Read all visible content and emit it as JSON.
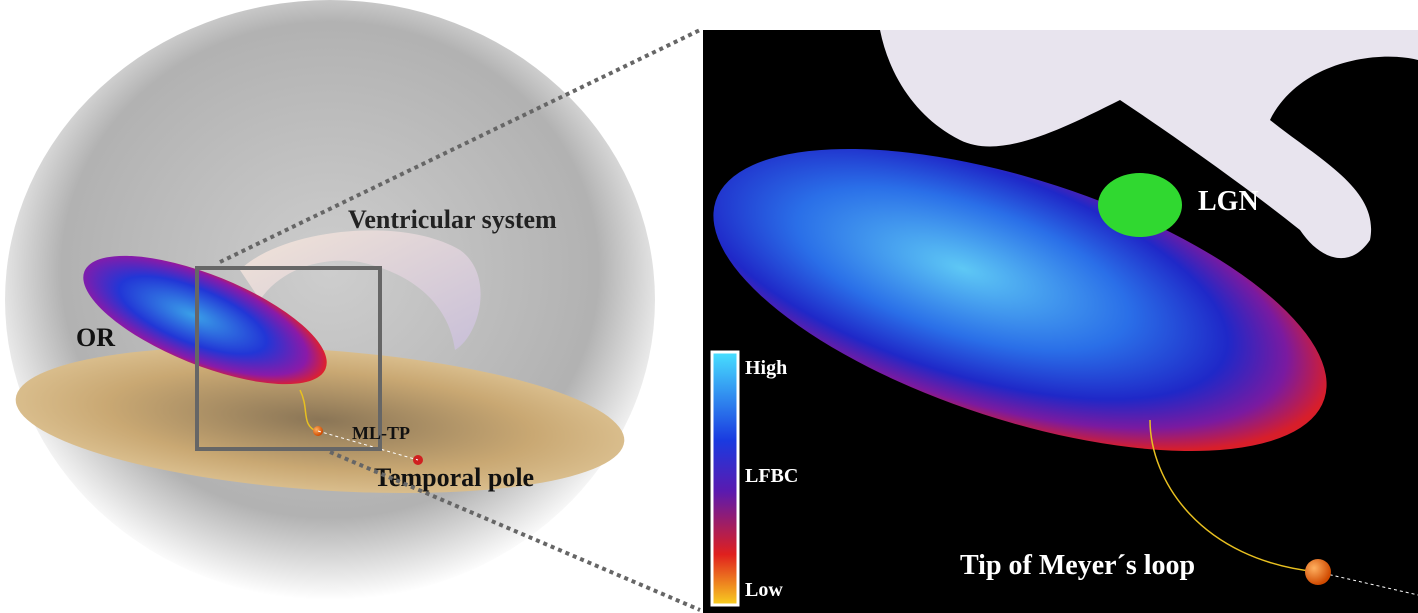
{
  "left_panel": {
    "labels": {
      "ventricles": "Ventricular system",
      "optic_radiation": "OR",
      "ml_tp": "ML-TP",
      "temporal_pole": "Temporal pole"
    }
  },
  "right_panel": {
    "labels": {
      "lgn": "LGN",
      "meyer_tip": "Tip of Meyer´s loop"
    },
    "colorbar": {
      "high": "High",
      "title": "LFBC",
      "low": "Low"
    }
  }
}
